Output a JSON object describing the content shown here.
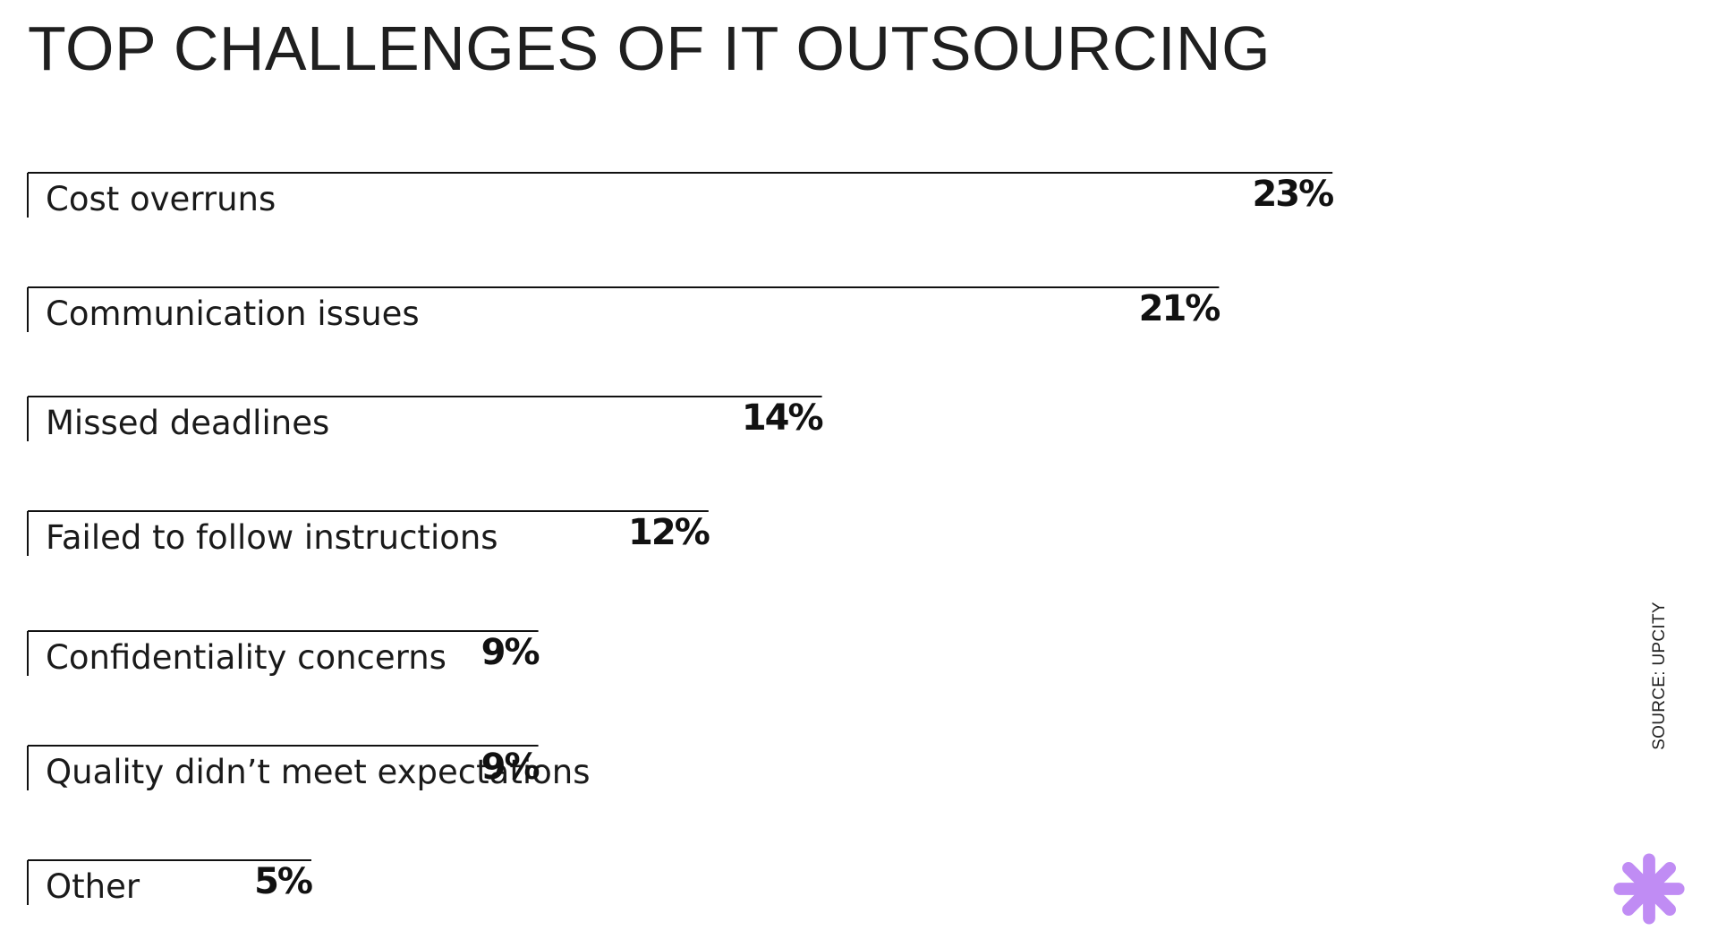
{
  "chart_data": {
    "type": "bar",
    "orientation": "horizontal",
    "title": "TOP CHALLENGES OF IT OUTSOURCING",
    "categories": [
      "Cost overruns",
      "Communication issues",
      "Missed deadlines",
      "Failed to follow instructions",
      "Confidentiality concerns",
      "Quality didn’t meet expectations",
      "Other"
    ],
    "values": [
      23,
      21,
      14,
      12,
      9,
      9,
      5
    ],
    "value_labels": [
      "23%",
      "21%",
      "14%",
      "12%",
      "9%",
      "9%",
      "5%"
    ],
    "unit": "%",
    "grid": false,
    "legend": "none"
  },
  "source": "SOURCE: UPCITY",
  "colors": {
    "text": "#1a1a1a",
    "line": "#111111",
    "accent": "#c08cf4",
    "background": "#ffffff"
  },
  "icons": {
    "logo": "asterisk-icon"
  }
}
